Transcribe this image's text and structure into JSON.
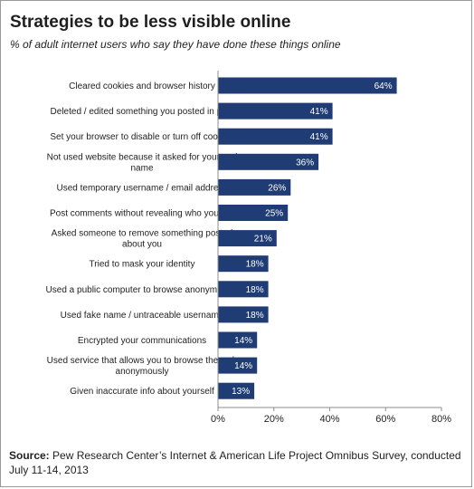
{
  "chart_data": {
    "type": "bar",
    "orientation": "horizontal",
    "title": "Strategies to be less visible online",
    "subtitle": "% of adult internet users who say they have done these things online",
    "categories": [
      [
        "Cleared cookies and browser history"
      ],
      [
        "Deleted / edited something you posted in past"
      ],
      [
        "Set your browser to disable or turn off cookies"
      ],
      [
        "Not used website because it asked for your real",
        "name"
      ],
      [
        "Used temporary username / email address"
      ],
      [
        "Post comments without revealing who you are"
      ],
      [
        "Asked someone to remove something posted",
        "about you"
      ],
      [
        "Tried to mask your identity"
      ],
      [
        "Used a public computer to browse anonymously"
      ],
      [
        "Used fake name / untraceable username"
      ],
      [
        "Encrypted your communications"
      ],
      [
        "Used service that allows you to browse the web",
        "anonymously"
      ],
      [
        "Given inaccurate info about yourself"
      ]
    ],
    "values": [
      64,
      41,
      41,
      36,
      26,
      25,
      21,
      18,
      18,
      18,
      14,
      14,
      13
    ],
    "value_labels": [
      "64%",
      "41%",
      "41%",
      "36%",
      "26%",
      "25%",
      "21%",
      "18%",
      "18%",
      "18%",
      "14%",
      "14%",
      "13%"
    ],
    "xlim": [
      0,
      80
    ],
    "ticks": [
      0,
      20,
      40,
      60,
      80
    ],
    "tick_labels": [
      "0%",
      "20%",
      "40%",
      "60%",
      "80%"
    ],
    "grid": false,
    "legend": "none",
    "bar_color": "#1f3c74"
  },
  "source": {
    "label": "Source:",
    "text": " Pew Research Center’s Internet & American Life Project Omnibus Survey, conducted July 11-14, 2013"
  }
}
